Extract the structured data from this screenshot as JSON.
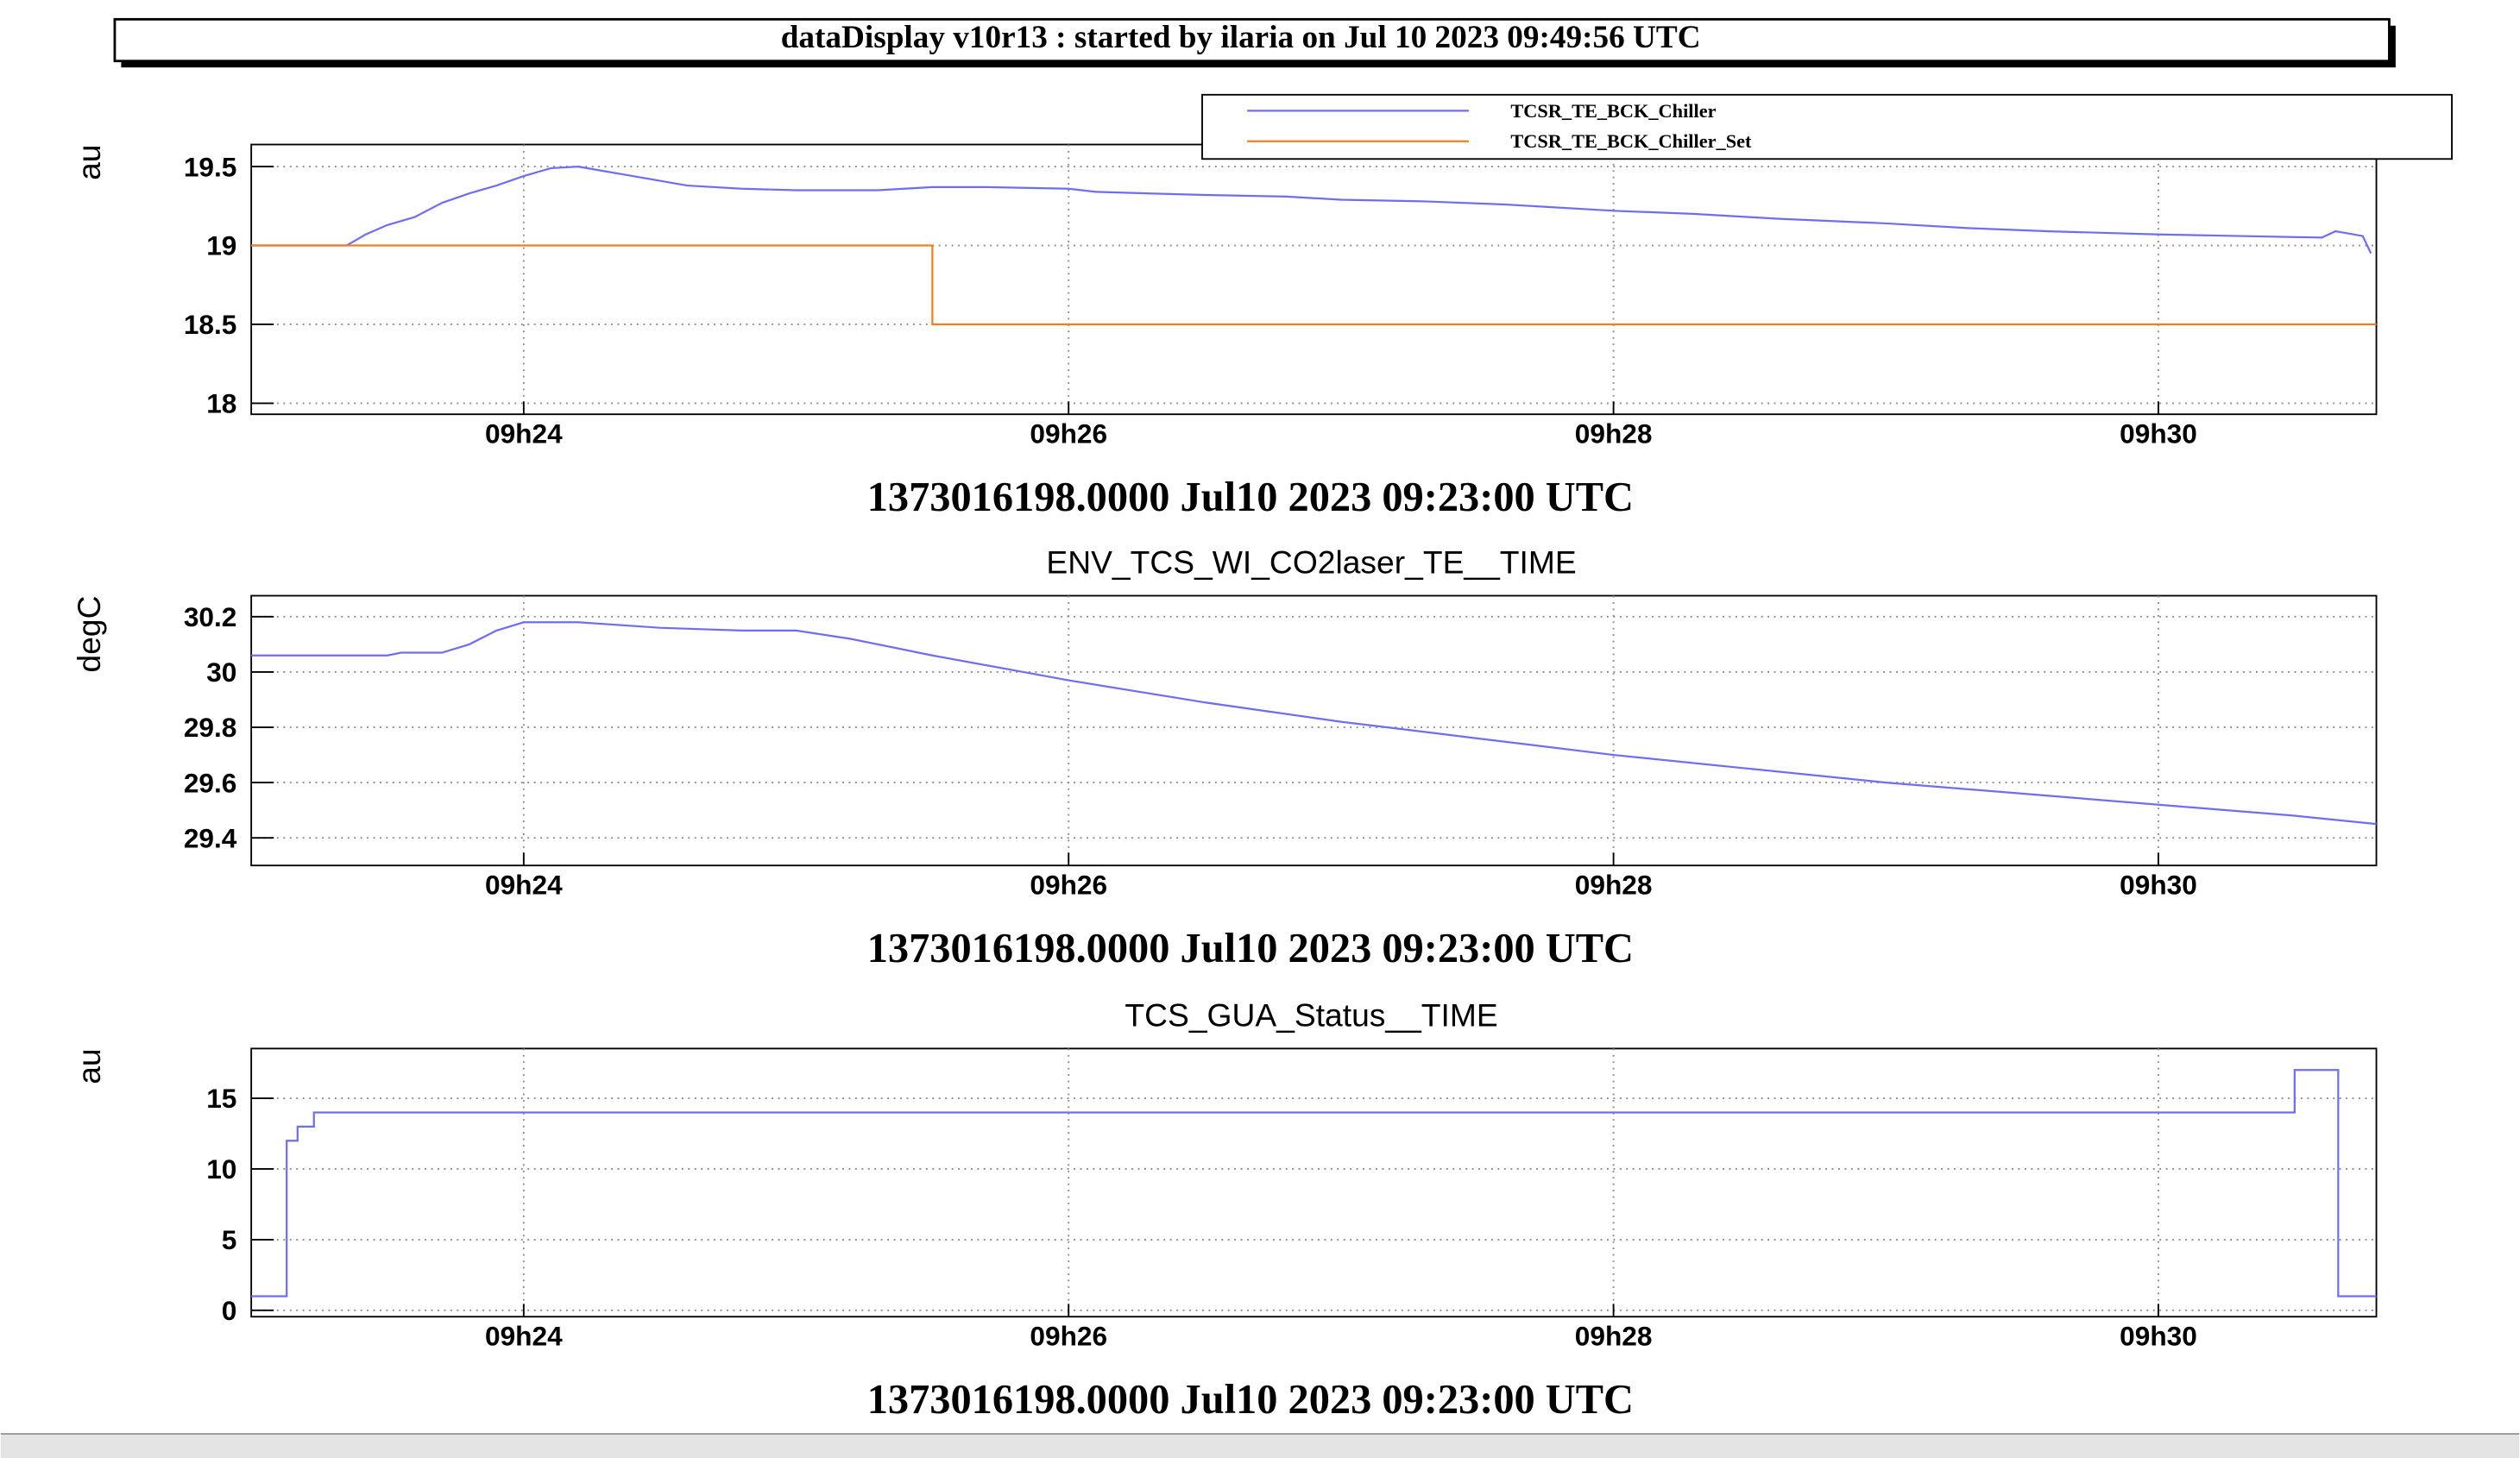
{
  "header": {
    "title": "dataDisplay v10r13 : started by ilaria on Jul 10 2023 09:49:56 UTC"
  },
  "chart_data": [
    {
      "type": "line",
      "y_label": "au",
      "x_label": "1373016198.0000 Jul10 2023 09:23:00 UTC",
      "xlim": [
        23.0,
        30.8
      ],
      "xticks": [
        {
          "value": 24,
          "label": "09h24"
        },
        {
          "value": 26,
          "label": "09h26"
        },
        {
          "value": 28,
          "label": "09h28"
        },
        {
          "value": 30,
          "label": "09h30"
        }
      ],
      "ylim": [
        17.93,
        19.64
      ],
      "yticks": [
        18,
        18.5,
        19,
        19.5
      ],
      "grid": true,
      "legend": "top-right",
      "series": [
        {
          "name": "TCSR_TE_BCK_Chiller",
          "color": "#6e6ef5",
          "x": [
            23.0,
            23.35,
            23.42,
            23.5,
            23.6,
            23.7,
            23.8,
            23.9,
            24.0,
            24.1,
            24.2,
            24.3,
            24.4,
            24.5,
            24.6,
            24.8,
            25.0,
            25.3,
            25.5,
            25.7,
            26.0,
            26.1,
            26.3,
            26.5,
            26.8,
            27.0,
            27.3,
            27.6,
            28.0,
            28.3,
            28.6,
            29.0,
            29.3,
            29.6,
            30.0,
            30.3,
            30.6,
            30.65,
            30.75,
            30.78
          ],
          "values": [
            19.0,
            19.0,
            19.07,
            19.13,
            19.18,
            19.27,
            19.33,
            19.38,
            19.44,
            19.49,
            19.5,
            19.47,
            19.44,
            19.41,
            19.38,
            19.36,
            19.35,
            19.35,
            19.37,
            19.37,
            19.36,
            19.34,
            19.33,
            19.32,
            19.31,
            19.29,
            19.28,
            19.26,
            19.22,
            19.2,
            19.17,
            19.14,
            19.11,
            19.09,
            19.07,
            19.06,
            19.05,
            19.09,
            19.06,
            18.95
          ]
        },
        {
          "name": "TCSR_TE_BCK_Chiller_Set",
          "color": "#f07f24",
          "x": [
            23.0,
            25.5,
            25.5,
            30.8
          ],
          "values": [
            19.0,
            19.0,
            18.5,
            18.5
          ]
        }
      ]
    },
    {
      "type": "line",
      "title": "ENV_TCS_WI_CO2laser_TE__TIME",
      "y_label": "degC",
      "x_label": "1373016198.0000 Jul10 2023 09:23:00 UTC",
      "xlim": [
        23.0,
        30.8
      ],
      "xticks": [
        {
          "value": 24,
          "label": "09h24"
        },
        {
          "value": 26,
          "label": "09h26"
        },
        {
          "value": 28,
          "label": "09h28"
        },
        {
          "value": 30,
          "label": "09h30"
        }
      ],
      "ylim": [
        29.3,
        30.276
      ],
      "yticks": [
        29.4,
        29.6,
        29.8,
        30,
        30.2
      ],
      "grid": true,
      "series": [
        {
          "color": "#6e6ef5",
          "x": [
            23.0,
            23.5,
            23.55,
            23.7,
            23.8,
            23.9,
            24.0,
            24.2,
            24.5,
            24.8,
            25.0,
            25.2,
            25.5,
            26.0,
            26.5,
            27.0,
            27.5,
            28.0,
            28.5,
            29.0,
            29.5,
            30.0,
            30.5,
            30.8
          ],
          "values": [
            30.06,
            30.06,
            30.07,
            30.07,
            30.1,
            30.15,
            30.18,
            30.18,
            30.16,
            30.15,
            30.15,
            30.12,
            30.06,
            29.97,
            29.89,
            29.82,
            29.76,
            29.7,
            29.65,
            29.6,
            29.56,
            29.52,
            29.48,
            29.45
          ]
        }
      ]
    },
    {
      "type": "line",
      "title": "TCS_GUA_Status__TIME",
      "y_label": "au",
      "x_label": "1373016198.0000 Jul10 2023 09:23:00 UTC",
      "xlim": [
        23.0,
        30.8
      ],
      "xticks": [
        {
          "value": 24,
          "label": "09h24"
        },
        {
          "value": 26,
          "label": "09h26"
        },
        {
          "value": 28,
          "label": "09h28"
        },
        {
          "value": 30,
          "label": "09h30"
        }
      ],
      "ylim": [
        -0.45,
        18.52
      ],
      "yticks": [
        0,
        5,
        10,
        15
      ],
      "grid": true,
      "series": [
        {
          "color": "#6e6ef5",
          "x": [
            23.0,
            23.13,
            23.13,
            23.17,
            23.17,
            23.23,
            23.23,
            30.5,
            30.5,
            30.66,
            30.66,
            30.8
          ],
          "values": [
            1,
            1,
            12,
            12,
            13,
            13,
            14,
            14,
            17,
            17,
            1,
            1
          ]
        }
      ]
    }
  ]
}
